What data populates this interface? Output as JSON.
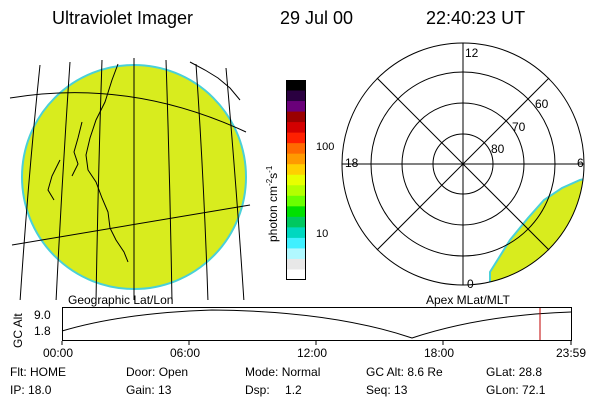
{
  "header": {
    "title": "Ultraviolet Imager",
    "date": "29 Jul 00",
    "time": "22:40:23 UT"
  },
  "geo_panel": {
    "label": "Geographic Lat/Lon"
  },
  "polar_panel": {
    "label": "Apex MLat/MLT",
    "mlt_labels": {
      "top": "12",
      "left": "18",
      "right": "6",
      "bottom": "0"
    },
    "lat_labels": [
      "60",
      "70",
      "80"
    ]
  },
  "colorbar": {
    "unit_label": "photon cm",
    "unit_exp1": "-2",
    "unit_s": "s",
    "unit_exp2": "-1",
    "ticks": [
      "100",
      "10"
    ],
    "colors": [
      "#000000",
      "#2a0040",
      "#6a007a",
      "#9a0000",
      "#d40000",
      "#ff2000",
      "#ff6a00",
      "#ff9a00",
      "#ffd000",
      "#e8ff00",
      "#b4ff00",
      "#6aff00",
      "#00e000",
      "#00c860",
      "#00d8c0",
      "#40f0ff",
      "#b0f8ff",
      "#e8e8e8",
      "#ffffff"
    ]
  },
  "orbit_plot": {
    "ylabel": "GC Alt",
    "y_ticks": [
      "9.0",
      "1.8"
    ],
    "x_ticks": [
      "00:00",
      "06:00",
      "12:00",
      "18:00",
      "23:59"
    ]
  },
  "status": {
    "row1": [
      {
        "label": "Flt:",
        "value": "HOME"
      },
      {
        "label": "Door:",
        "value": "Open"
      },
      {
        "label": "Mode:",
        "value": "Normal"
      },
      {
        "label": "GC Alt:",
        "value": "8.6 Re"
      },
      {
        "label": "GLat:",
        "value": "28.8"
      }
    ],
    "row2": [
      {
        "label": "IP:",
        "value": "18.0"
      },
      {
        "label": "Gain:",
        "value": "13"
      },
      {
        "label": "Dsp:",
        "value": "1.2"
      },
      {
        "label": "Seq:",
        "value": "13"
      },
      {
        "label": "GLon:",
        "value": "72.1"
      }
    ]
  },
  "colors": {
    "emission": "#d8ec1e",
    "emission_edge": "#4ad0d8",
    "marker": "#c00000"
  }
}
